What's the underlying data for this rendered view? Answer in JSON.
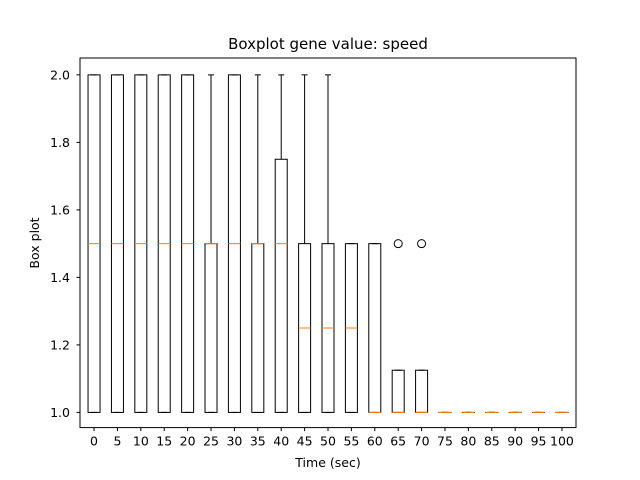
{
  "chart_data": {
    "type": "boxplot",
    "title": "Boxplot gene value: speed",
    "xlabel": "Time (sec)",
    "ylabel": "Box plot",
    "ylim": [
      0.955,
      2.05
    ],
    "yticks": [
      1.0,
      1.2,
      1.4,
      1.6,
      1.8,
      2.0
    ],
    "ytick_labels": [
      "1.0",
      "1.2",
      "1.4",
      "1.6",
      "1.8",
      "2.0"
    ],
    "categories": [
      "0",
      "5",
      "10",
      "15",
      "20",
      "25",
      "30",
      "35",
      "40",
      "45",
      "50",
      "55",
      "60",
      "65",
      "70",
      "75",
      "80",
      "85",
      "90",
      "95",
      "100"
    ],
    "boxes": [
      {
        "whislo": 1.0,
        "q1": 1.0,
        "med": 1.5,
        "q3": 2.0,
        "whishi": 2.0,
        "fliers": []
      },
      {
        "whislo": 1.0,
        "q1": 1.0,
        "med": 1.5,
        "q3": 2.0,
        "whishi": 2.0,
        "fliers": []
      },
      {
        "whislo": 1.0,
        "q1": 1.0,
        "med": 1.5,
        "q3": 2.0,
        "whishi": 2.0,
        "fliers": []
      },
      {
        "whislo": 1.0,
        "q1": 1.0,
        "med": 1.5,
        "q3": 2.0,
        "whishi": 2.0,
        "fliers": []
      },
      {
        "whislo": 1.0,
        "q1": 1.0,
        "med": 1.5,
        "q3": 2.0,
        "whishi": 2.0,
        "fliers": []
      },
      {
        "whislo": 1.0,
        "q1": 1.0,
        "med": 1.5,
        "q3": 1.5,
        "whishi": 2.0,
        "fliers": []
      },
      {
        "whislo": 1.0,
        "q1": 1.0,
        "med": 1.5,
        "q3": 2.0,
        "whishi": 2.0,
        "fliers": []
      },
      {
        "whislo": 1.0,
        "q1": 1.0,
        "med": 1.5,
        "q3": 1.5,
        "whishi": 2.0,
        "fliers": []
      },
      {
        "whislo": 1.0,
        "q1": 1.0,
        "med": 1.5,
        "q3": 1.75,
        "whishi": 2.0,
        "fliers": []
      },
      {
        "whislo": 1.0,
        "q1": 1.0,
        "med": 1.25,
        "q3": 1.5,
        "whishi": 2.0,
        "fliers": []
      },
      {
        "whislo": 1.0,
        "q1": 1.0,
        "med": 1.25,
        "q3": 1.5,
        "whishi": 2.0,
        "fliers": []
      },
      {
        "whislo": 1.0,
        "q1": 1.0,
        "med": 1.25,
        "q3": 1.5,
        "whishi": 1.5,
        "fliers": []
      },
      {
        "whislo": 1.0,
        "q1": 1.0,
        "med": 1.0,
        "q3": 1.5,
        "whishi": 1.5,
        "fliers": []
      },
      {
        "whislo": 1.0,
        "q1": 1.0,
        "med": 1.0,
        "q3": 1.125,
        "whishi": 1.125,
        "fliers": [
          1.5
        ]
      },
      {
        "whislo": 1.0,
        "q1": 1.0,
        "med": 1.0,
        "q3": 1.125,
        "whishi": 1.125,
        "fliers": [
          1.5
        ]
      },
      {
        "whislo": 1.0,
        "q1": 1.0,
        "med": 1.0,
        "q3": 1.0,
        "whishi": 1.0,
        "fliers": []
      },
      {
        "whislo": 1.0,
        "q1": 1.0,
        "med": 1.0,
        "q3": 1.0,
        "whishi": 1.0,
        "fliers": []
      },
      {
        "whislo": 1.0,
        "q1": 1.0,
        "med": 1.0,
        "q3": 1.0,
        "whishi": 1.0,
        "fliers": []
      },
      {
        "whislo": 1.0,
        "q1": 1.0,
        "med": 1.0,
        "q3": 1.0,
        "whishi": 1.0,
        "fliers": []
      },
      {
        "whislo": 1.0,
        "q1": 1.0,
        "med": 1.0,
        "q3": 1.0,
        "whishi": 1.0,
        "fliers": []
      },
      {
        "whislo": 1.0,
        "q1": 1.0,
        "med": 1.0,
        "q3": 1.0,
        "whishi": 1.0,
        "fliers": []
      }
    ],
    "colors": {
      "box": "#000000",
      "median": "#ff7f0e",
      "background": "#ffffff"
    },
    "grid": false,
    "legend": "none"
  }
}
